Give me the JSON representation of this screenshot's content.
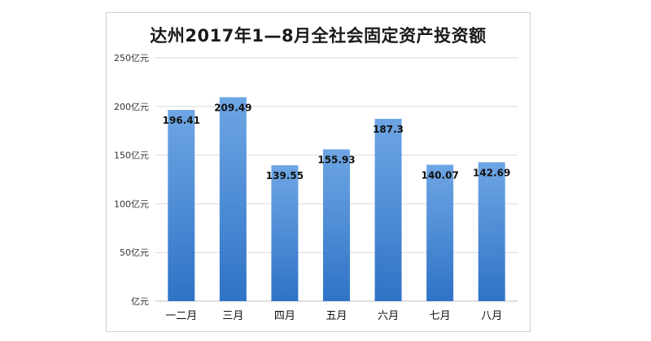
{
  "chart_data": {
    "type": "bar",
    "title": "达州2017年1—8月全社会固定资产投资额",
    "categories": [
      "一二月",
      "三月",
      "四月",
      "五月",
      "六月",
      "七月",
      "八月"
    ],
    "values": [
      196.41,
      209.49,
      139.55,
      155.93,
      187.3,
      140.07,
      142.69
    ],
    "data_labels": [
      "196.41",
      "209.49",
      "139.55",
      "155.93",
      "187.3",
      "140.07",
      "142.69"
    ],
    "yticks": [
      0,
      50,
      100,
      150,
      200,
      250
    ],
    "ytick_labels": [
      "亿元",
      "50亿元",
      "100亿元",
      "150亿元",
      "200亿元",
      "250亿元"
    ],
    "ylim": [
      0,
      250
    ],
    "xlabel": "",
    "ylabel": "",
    "grid": true,
    "legend": "none",
    "colors": {
      "bar_light": "#6ea6e4",
      "bar_dark": "#2f73c6",
      "grid": "#d9d9d9",
      "axis": "#bfbfbf"
    }
  }
}
